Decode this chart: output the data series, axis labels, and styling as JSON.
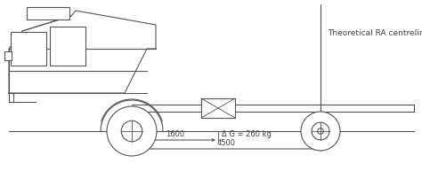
{
  "bg_color": "#ffffff",
  "line_color": "#555555",
  "text_color": "#444444",
  "label_1600": "1600",
  "label_4500": "4500",
  "label_dg": "Δ G = 260 kg",
  "label_ra": "Theoretical RA centreline",
  "figw": 4.74,
  "figh": 2.02,
  "dpi": 100
}
